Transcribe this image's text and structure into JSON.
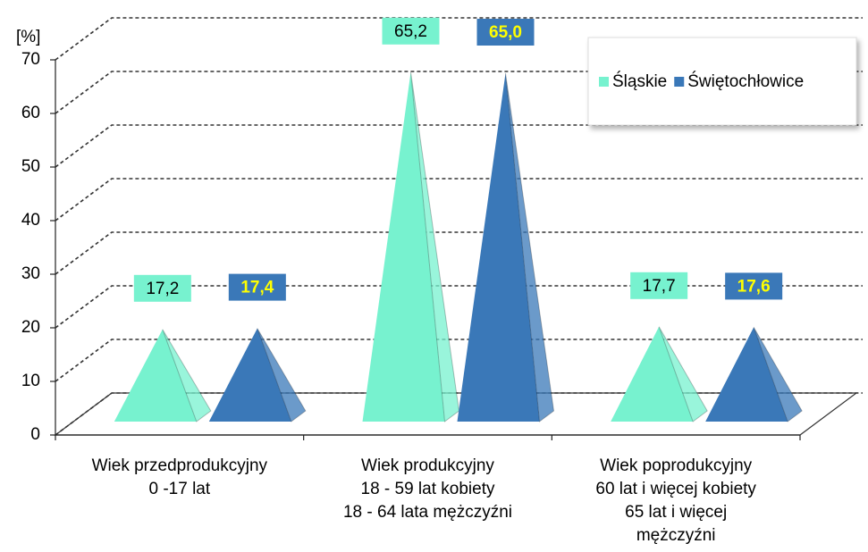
{
  "chart_data": {
    "type": "pyramid3d",
    "y_label": "[%]",
    "categories": [
      [
        "Wiek przedprodukcyjny",
        "0 -17 lat"
      ],
      [
        "Wiek produkcyjny",
        "18 - 59 lat kobiety",
        "18 - 64 lata mężczyźni"
      ],
      [
        "Wiek poprodukcyjny",
        "60 lat i więcej kobiety",
        "65 lat i więcej",
        "mężczyźni"
      ]
    ],
    "series": [
      {
        "name": "Śląskie",
        "color": "#77f2cf",
        "values": [
          17.2,
          65.2,
          17.7
        ],
        "value_labels": [
          "17,2",
          "65,2",
          "17,7"
        ]
      },
      {
        "name": "Świętochłowice",
        "color": "#3a78b8",
        "values": [
          17.4,
          65.0,
          17.6
        ],
        "value_labels": [
          "17,4",
          "65,0",
          "17,6"
        ]
      }
    ],
    "ylim": [
      0,
      70
    ],
    "yticks": [
      0,
      10,
      20,
      30,
      40,
      50,
      60,
      70
    ],
    "grid": true,
    "legend": "top-right"
  }
}
